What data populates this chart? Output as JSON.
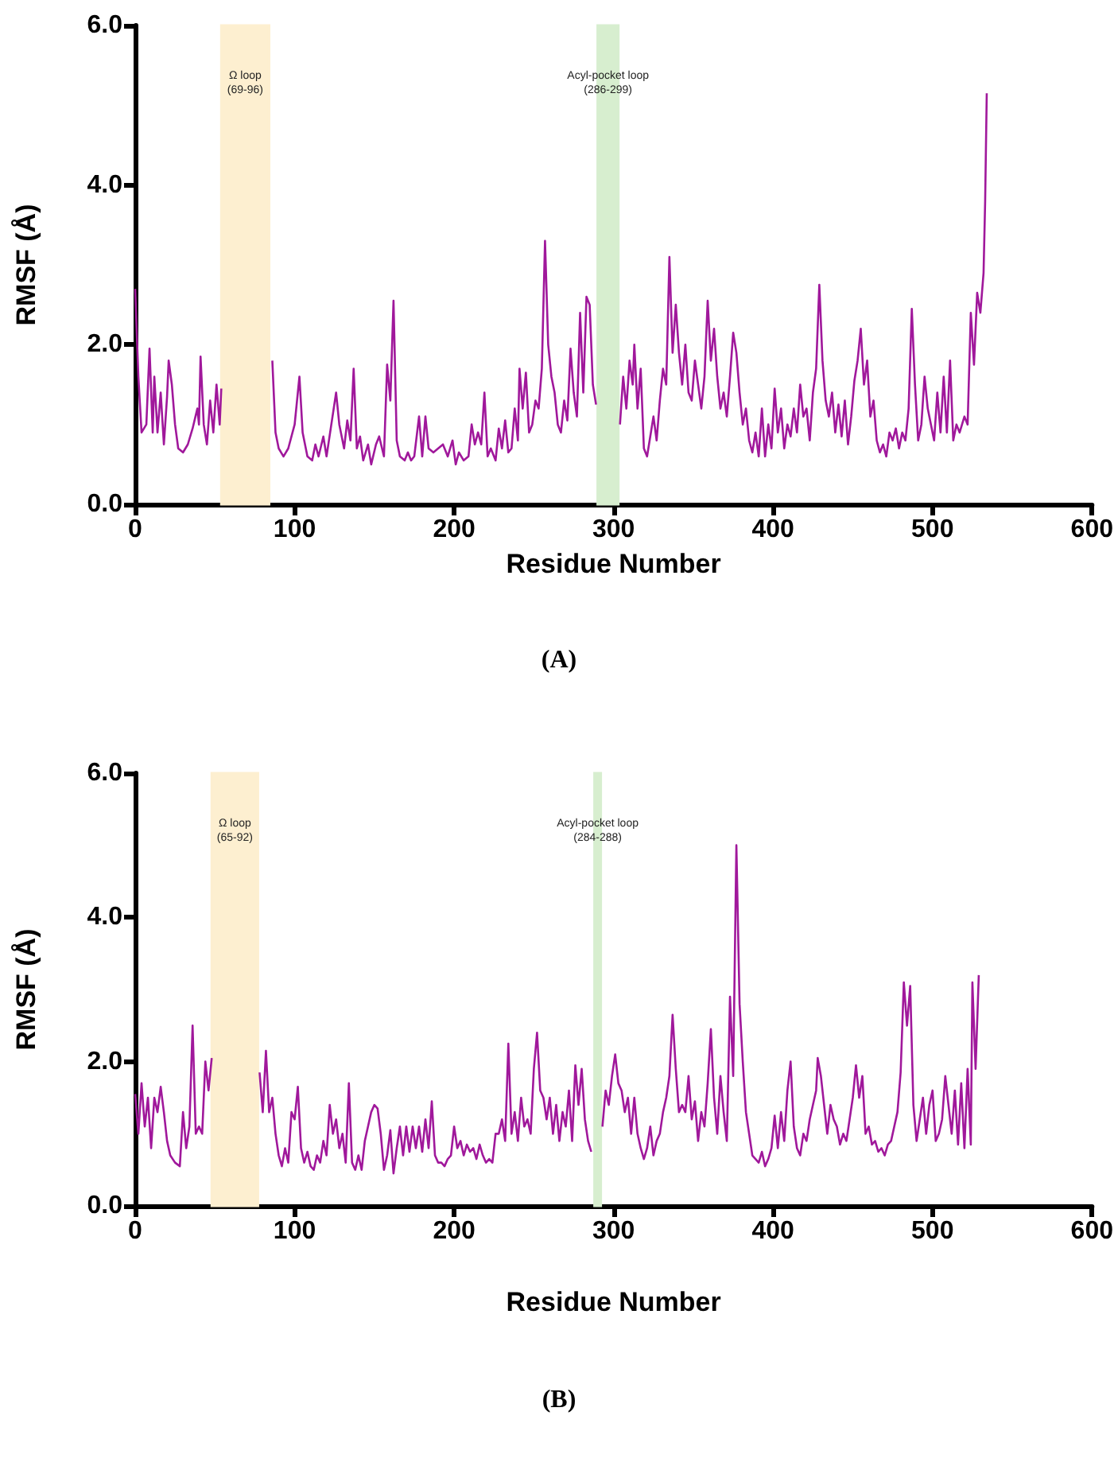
{
  "chart_data": [
    {
      "type": "line",
      "xlabel": "Residue Number",
      "ylabel": "RMSF (Å)",
      "annotations": [
        "(A)"
      ],
      "xlim": [
        0,
        600
      ],
      "xticks": [
        0,
        100,
        200,
        300,
        400,
        500,
        600
      ],
      "ylim": [
        0,
        6
      ],
      "yticks": [
        {
          "value": 0,
          "label": "0.0"
        },
        {
          "value": 2,
          "label": "2.0"
        },
        {
          "value": 4,
          "label": "4.0"
        },
        {
          "value": 6,
          "label": "6.0"
        }
      ],
      "grid": false,
      "marker": "none",
      "line_style": "solid",
      "bands": [
        {
          "axis": "x",
          "from": 54,
          "to": 84,
          "label": "Ω loop\n(69-96)",
          "color": "#fdefd0"
        },
        {
          "axis": "x",
          "from": 290,
          "to": 303,
          "label": "Acyl-pocket loop\n(286-299)",
          "color": "#d7eecf"
        }
      ],
      "series": [
        {
          "color": "#a0189b",
          "x": [
            0,
            2,
            4,
            7,
            9,
            11,
            12,
            14,
            16,
            18,
            20,
            21,
            23,
            25,
            27,
            30,
            33,
            36,
            39,
            40,
            41,
            43,
            45,
            47,
            49,
            51,
            53,
            54,
            55,
            84,
            86,
            88,
            90,
            93,
            96,
            100,
            103,
            105,
            108,
            111,
            113,
            115,
            118,
            120,
            123,
            126,
            128,
            131,
            133,
            135,
            137,
            139,
            141,
            143,
            146,
            148,
            151,
            153,
            156,
            158,
            160,
            162,
            164,
            166,
            169,
            171,
            173,
            175,
            178,
            180,
            182,
            184,
            187,
            190,
            193,
            196,
            199,
            201,
            203,
            206,
            209,
            211,
            213,
            215,
            217,
            219,
            221,
            223,
            226,
            228,
            230,
            232,
            234,
            236,
            238,
            240,
            241,
            243,
            245,
            247,
            249,
            251,
            253,
            255,
            257,
            259,
            261,
            263,
            265,
            267,
            269,
            271,
            273,
            275,
            277,
            279,
            281,
            283,
            285,
            287,
            289,
            290,
            303,
            304,
            306,
            308,
            310,
            312,
            313,
            315,
            317,
            319,
            321,
            323,
            325,
            327,
            329,
            331,
            333,
            335,
            337,
            339,
            341,
            343,
            345,
            347,
            349,
            351,
            353,
            355,
            357,
            359,
            361,
            363,
            365,
            367,
            369,
            371,
            373,
            375,
            377,
            379,
            381,
            383,
            385,
            387,
            389,
            391,
            393,
            395,
            397,
            399,
            401,
            403,
            405,
            407,
            409,
            411,
            413,
            415,
            417,
            419,
            421,
            423,
            425,
            427,
            429,
            431,
            433,
            435,
            437,
            439,
            441,
            443,
            445,
            447,
            449,
            451,
            453,
            455,
            457,
            459,
            461,
            463,
            465,
            467,
            469,
            471,
            473,
            475,
            477,
            479,
            481,
            483,
            485,
            487,
            489,
            491,
            493,
            495,
            497,
            499,
            501,
            503,
            505,
            507,
            509,
            511,
            513,
            515,
            517,
            520,
            522,
            524,
            526,
            528,
            530,
            532,
            533,
            534
          ],
          "values": [
            2.7,
            1.6,
            0.9,
            1.0,
            1.95,
            0.9,
            1.6,
            0.9,
            1.4,
            0.75,
            1.35,
            1.8,
            1.5,
            1.0,
            0.7,
            0.65,
            0.75,
            0.95,
            1.2,
            1.0,
            1.85,
            1.0,
            0.75,
            1.3,
            0.9,
            1.5,
            1.0,
            1.45,
            null,
            null,
            1.8,
            0.9,
            0.7,
            0.6,
            0.7,
            1.0,
            1.6,
            0.9,
            0.6,
            0.55,
            0.75,
            0.6,
            0.85,
            0.6,
            1.0,
            1.4,
            1.0,
            0.7,
            1.05,
            0.8,
            1.7,
            0.7,
            0.85,
            0.55,
            0.75,
            0.5,
            0.75,
            0.85,
            0.6,
            1.75,
            1.3,
            2.55,
            0.8,
            0.6,
            0.55,
            0.65,
            0.55,
            0.6,
            1.1,
            0.6,
            1.1,
            0.7,
            0.65,
            0.7,
            0.75,
            0.6,
            0.8,
            0.5,
            0.65,
            0.55,
            0.6,
            1.0,
            0.75,
            0.9,
            0.75,
            1.4,
            0.6,
            0.7,
            0.55,
            0.95,
            0.7,
            1.05,
            0.65,
            0.7,
            1.2,
            0.8,
            1.7,
            1.2,
            1.65,
            0.9,
            1.0,
            1.3,
            1.2,
            1.7,
            3.3,
            2.0,
            1.6,
            1.4,
            1.0,
            0.9,
            1.3,
            1.05,
            1.95,
            1.4,
            1.1,
            2.4,
            1.4,
            2.6,
            2.5,
            1.5,
            1.25,
            null,
            null,
            1.0,
            1.6,
            1.2,
            1.8,
            1.5,
            2.0,
            1.2,
            1.7,
            0.7,
            0.6,
            0.85,
            1.1,
            0.8,
            1.3,
            1.7,
            1.5,
            3.1,
            1.9,
            2.5,
            1.9,
            1.5,
            2.0,
            1.4,
            1.3,
            1.8,
            1.5,
            1.2,
            1.6,
            2.55,
            1.8,
            2.2,
            1.6,
            1.2,
            1.4,
            1.1,
            1.6,
            2.15,
            1.9,
            1.4,
            1.0,
            1.2,
            0.8,
            0.65,
            0.9,
            0.6,
            1.2,
            0.6,
            1.0,
            0.7,
            1.45,
            0.9,
            1.2,
            0.7,
            1.0,
            0.85,
            1.2,
            0.9,
            1.5,
            1.1,
            1.2,
            0.8,
            1.4,
            1.7,
            2.75,
            1.8,
            1.3,
            1.1,
            1.4,
            0.9,
            1.25,
            0.85,
            1.3,
            0.75,
            1.1,
            1.55,
            1.8,
            2.2,
            1.5,
            1.8,
            1.1,
            1.3,
            0.8,
            0.65,
            0.75,
            0.6,
            0.9,
            0.8,
            0.95,
            0.7,
            0.9,
            0.8,
            1.2,
            2.45,
            1.5,
            0.8,
            1.0,
            1.6,
            1.2,
            1.0,
            0.8,
            1.4,
            0.9,
            1.6,
            0.9,
            1.8,
            0.8,
            1.0,
            0.9,
            1.1,
            1.0,
            2.4,
            1.75,
            2.65,
            2.4,
            2.9,
            3.8,
            5.15
          ]
        }
      ]
    },
    {
      "type": "line",
      "xlabel": "Residue Number",
      "ylabel": "RMSF (Å)",
      "annotations": [
        "(B)"
      ],
      "xlim": [
        0,
        600
      ],
      "xticks": [
        0,
        100,
        200,
        300,
        400,
        500,
        600
      ],
      "ylim": [
        0,
        6
      ],
      "yticks": [
        {
          "value": 0,
          "label": "0.0"
        },
        {
          "value": 2,
          "label": "2.0"
        },
        {
          "value": 4,
          "label": "4.0"
        },
        {
          "value": 6,
          "label": "6.0"
        }
      ],
      "grid": false,
      "marker": "none",
      "line_style": "solid",
      "bands": [
        {
          "axis": "x",
          "from": 48,
          "to": 77,
          "label": "Ω loop\n(65-92)",
          "color": "#fdefd0"
        },
        {
          "axis": "x",
          "from": 288,
          "to": 292,
          "label": "Acyl-pocket loop\n(284-288)",
          "color": "#d7eecf"
        }
      ],
      "series": [
        {
          "color": "#a0189b",
          "x": [
            0,
            2,
            4,
            6,
            8,
            10,
            12,
            14,
            16,
            18,
            20,
            22,
            25,
            28,
            30,
            32,
            34,
            36,
            38,
            40,
            42,
            44,
            46,
            48,
            49,
            77,
            78,
            80,
            82,
            84,
            86,
            88,
            90,
            92,
            94,
            96,
            98,
            100,
            102,
            104,
            106,
            108,
            110,
            112,
            114,
            116,
            118,
            120,
            122,
            124,
            126,
            128,
            130,
            132,
            134,
            136,
            138,
            140,
            142,
            144,
            146,
            148,
            150,
            152,
            154,
            156,
            158,
            160,
            162,
            164,
            166,
            168,
            170,
            172,
            174,
            176,
            178,
            180,
            182,
            184,
            186,
            188,
            190,
            192,
            194,
            196,
            198,
            200,
            202,
            204,
            206,
            208,
            210,
            212,
            214,
            216,
            218,
            220,
            222,
            224,
            226,
            228,
            230,
            232,
            234,
            236,
            238,
            240,
            242,
            244,
            246,
            248,
            250,
            252,
            254,
            256,
            258,
            260,
            262,
            264,
            266,
            268,
            270,
            272,
            274,
            276,
            278,
            280,
            282,
            284,
            286,
            288,
            292,
            293,
            295,
            297,
            299,
            301,
            303,
            305,
            307,
            309,
            311,
            313,
            315,
            317,
            319,
            321,
            323,
            325,
            327,
            329,
            331,
            333,
            335,
            337,
            339,
            341,
            343,
            345,
            347,
            349,
            351,
            353,
            355,
            357,
            359,
            361,
            363,
            365,
            367,
            369,
            371,
            373,
            375,
            377,
            379,
            381,
            383,
            385,
            387,
            389,
            391,
            393,
            395,
            397,
            399,
            401,
            403,
            405,
            407,
            409,
            411,
            413,
            415,
            417,
            419,
            421,
            423,
            425,
            427,
            428,
            430,
            432,
            434,
            436,
            438,
            440,
            442,
            444,
            446,
            448,
            450,
            452,
            454,
            456,
            458,
            460,
            462,
            464,
            466,
            468,
            470,
            472,
            474,
            476,
            478,
            480,
            482,
            484,
            486,
            488,
            490,
            492,
            494,
            496,
            498,
            500,
            502,
            504,
            506,
            508,
            510,
            512,
            514,
            516,
            518,
            520,
            522,
            524,
            525,
            527,
            529
          ],
          "values": [
            1.55,
            1.0,
            1.7,
            1.1,
            1.5,
            0.8,
            1.5,
            1.3,
            1.65,
            1.3,
            0.9,
            0.7,
            0.6,
            0.55,
            1.3,
            0.8,
            1.1,
            2.5,
            1.0,
            1.1,
            1.0,
            2.0,
            1.6,
            2.05,
            null,
            null,
            1.85,
            1.3,
            2.15,
            1.3,
            1.5,
            1.0,
            0.7,
            0.55,
            0.8,
            0.6,
            1.3,
            1.2,
            1.65,
            0.8,
            0.6,
            0.75,
            0.55,
            0.5,
            0.7,
            0.6,
            0.9,
            0.7,
            1.4,
            1.0,
            1.2,
            0.8,
            1.0,
            0.6,
            1.7,
            0.6,
            0.5,
            0.7,
            0.5,
            0.9,
            1.1,
            1.3,
            1.4,
            1.35,
            1.0,
            0.5,
            0.7,
            1.05,
            0.45,
            0.8,
            1.1,
            0.7,
            1.1,
            0.75,
            1.1,
            0.8,
            1.1,
            0.75,
            1.2,
            0.8,
            1.45,
            0.7,
            0.6,
            0.6,
            0.55,
            0.65,
            0.7,
            1.1,
            0.8,
            0.9,
            0.7,
            0.85,
            0.75,
            0.8,
            0.65,
            0.85,
            0.7,
            0.6,
            0.65,
            0.6,
            1.0,
            1.0,
            1.2,
            0.9,
            2.25,
            1.0,
            1.3,
            0.9,
            1.5,
            1.1,
            1.2,
            1.0,
            1.9,
            2.4,
            1.6,
            1.5,
            1.2,
            1.5,
            1.0,
            1.4,
            0.9,
            1.3,
            1.1,
            1.6,
            0.9,
            1.95,
            1.4,
            1.9,
            1.2,
            0.9,
            0.75,
            null,
            null,
            1.1,
            1.6,
            1.4,
            1.8,
            2.1,
            1.7,
            1.6,
            1.3,
            1.5,
            1.0,
            1.5,
            1.0,
            0.8,
            0.65,
            0.8,
            1.1,
            0.7,
            0.9,
            1.0,
            1.3,
            1.5,
            1.8,
            2.65,
            1.9,
            1.3,
            1.4,
            1.3,
            1.8,
            1.2,
            1.45,
            0.9,
            1.3,
            1.1,
            1.7,
            2.45,
            1.5,
            1.0,
            1.8,
            1.3,
            0.9,
            2.9,
            1.8,
            5.0,
            2.8,
            2.0,
            1.3,
            1.0,
            0.7,
            0.65,
            0.6,
            0.75,
            0.55,
            0.65,
            0.8,
            1.25,
            0.8,
            1.3,
            0.9,
            1.6,
            2.0,
            1.1,
            0.8,
            0.7,
            1.0,
            0.9,
            1.2,
            1.4,
            1.6,
            2.05,
            1.8,
            1.4,
            1.0,
            1.4,
            1.2,
            1.1,
            0.85,
            1.0,
            0.9,
            1.2,
            1.5,
            1.95,
            1.5,
            1.8,
            1.0,
            1.1,
            0.85,
            0.9,
            0.75,
            0.8,
            0.7,
            0.85,
            0.9,
            1.1,
            1.3,
            1.85,
            3.1,
            2.5,
            3.05,
            1.4,
            0.9,
            1.2,
            1.5,
            1.0,
            1.4,
            1.6,
            0.9,
            1.0,
            1.2,
            1.8,
            1.4,
            1.0,
            1.6,
            0.85,
            1.7,
            0.8,
            1.9,
            0.85,
            3.1,
            1.9,
            3.2
          ]
        }
      ]
    }
  ]
}
